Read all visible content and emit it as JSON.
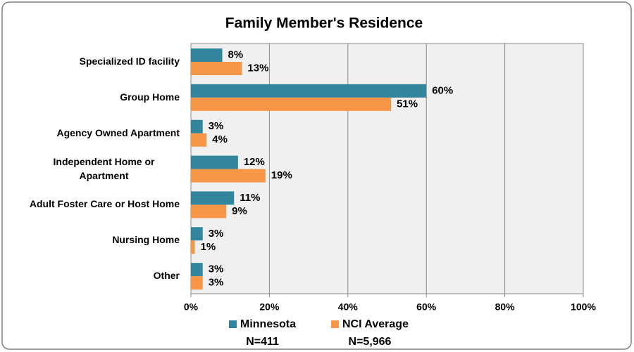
{
  "chart_data": {
    "type": "bar",
    "orientation": "horizontal",
    "title": "Family Member's Residence",
    "categories": [
      "Specialized ID facility",
      "Group Home",
      "Agency Owned Apartment",
      "Independent Home or Apartment",
      "Adult Foster Care or Host Home",
      "Nursing Home",
      "Other"
    ],
    "series": [
      {
        "name": "Minnesota",
        "sample_label": "N=411",
        "color": "#31859c",
        "values": [
          8,
          60,
          3,
          12,
          11,
          3,
          3
        ],
        "value_labels": [
          "8%",
          "60%",
          "3%",
          "12%",
          "11%",
          "3%",
          "3%"
        ]
      },
      {
        "name": "NCI Average",
        "sample_label": "N=5,966",
        "color": "#f79646",
        "values": [
          13,
          51,
          4,
          19,
          9,
          1,
          3
        ],
        "value_labels": [
          "13%",
          "51%",
          "4%",
          "19%",
          "9%",
          "1%",
          "3%"
        ]
      }
    ],
    "xlim": [
      0,
      100
    ],
    "xticks": [
      {
        "value": 0,
        "label": "0%"
      },
      {
        "value": 20,
        "label": "20%"
      },
      {
        "value": 40,
        "label": "40%"
      },
      {
        "value": 60,
        "label": "60%"
      },
      {
        "value": 80,
        "label": "80%"
      },
      {
        "value": 100,
        "label": "100%"
      }
    ],
    "grid": true,
    "legend": "bottom"
  }
}
